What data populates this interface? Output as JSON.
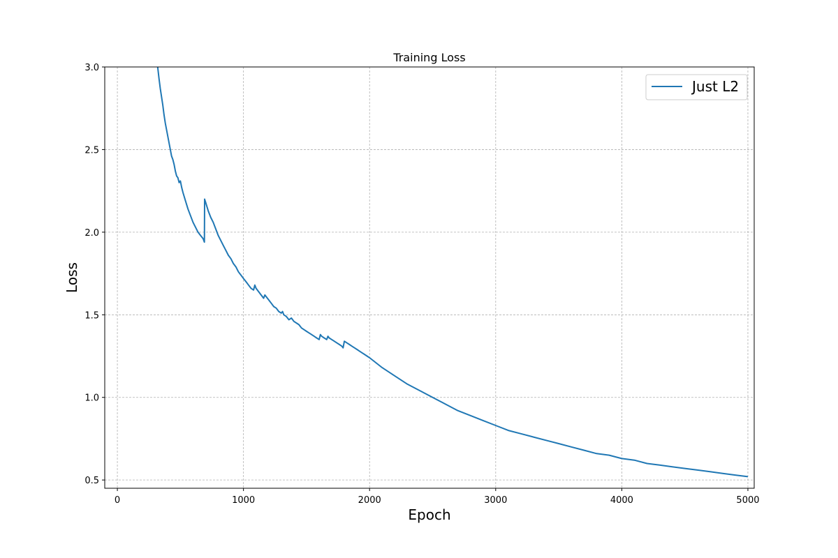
{
  "chart_data": {
    "type": "line",
    "title": "Training Loss",
    "xlabel": "Epoch",
    "ylabel": "Loss",
    "xlim": [
      -100,
      5050
    ],
    "ylim": [
      0.45,
      3.0
    ],
    "xticks": [
      0,
      1000,
      2000,
      3000,
      4000,
      5000
    ],
    "yticks": [
      0.5,
      1.0,
      1.5,
      2.0,
      2.5,
      3.0
    ],
    "xtick_labels": [
      "0",
      "1000",
      "2000",
      "3000",
      "4000",
      "5000"
    ],
    "ytick_labels": [
      "0.5",
      "1.0",
      "1.5",
      "2.0",
      "2.5",
      "3.0"
    ],
    "grid": true,
    "legend_position": "top-right",
    "series": [
      {
        "name": "Just L2",
        "color": "#1f77b4",
        "x": [
          320,
          330,
          340,
          350,
          360,
          370,
          380,
          390,
          400,
          410,
          420,
          430,
          440,
          450,
          460,
          470,
          480,
          490,
          500,
          510,
          520,
          540,
          560,
          580,
          600,
          620,
          640,
          660,
          680,
          690,
          692,
          700,
          720,
          740,
          760,
          780,
          800,
          820,
          840,
          860,
          880,
          900,
          920,
          940,
          960,
          980,
          1000,
          1020,
          1040,
          1060,
          1080,
          1090,
          1100,
          1120,
          1140,
          1160,
          1170,
          1180,
          1200,
          1220,
          1240,
          1260,
          1280,
          1300,
          1310,
          1320,
          1340,
          1360,
          1380,
          1400,
          1420,
          1440,
          1460,
          1480,
          1500,
          1520,
          1540,
          1560,
          1580,
          1600,
          1610,
          1620,
          1640,
          1660,
          1670,
          1680,
          1700,
          1720,
          1740,
          1760,
          1780,
          1790,
          1800,
          1820,
          1840,
          1860,
          1880,
          1900,
          1920,
          1940,
          1960,
          1980,
          2000,
          2100,
          2200,
          2300,
          2400,
          2500,
          2600,
          2700,
          2800,
          2900,
          3000,
          3100,
          3200,
          3300,
          3400,
          3500,
          3600,
          3700,
          3800,
          3900,
          4000,
          4100,
          4200,
          4300,
          4400,
          4500,
          4600,
          4700,
          4800,
          4900,
          5000
        ],
        "y": [
          3.0,
          2.93,
          2.87,
          2.82,
          2.77,
          2.71,
          2.66,
          2.62,
          2.58,
          2.54,
          2.5,
          2.46,
          2.44,
          2.41,
          2.37,
          2.34,
          2.33,
          2.3,
          2.31,
          2.27,
          2.24,
          2.19,
          2.14,
          2.1,
          2.06,
          2.03,
          2.0,
          1.98,
          1.96,
          1.94,
          2.2,
          2.18,
          2.13,
          2.09,
          2.06,
          2.02,
          1.98,
          1.95,
          1.92,
          1.89,
          1.86,
          1.84,
          1.81,
          1.79,
          1.76,
          1.74,
          1.72,
          1.7,
          1.68,
          1.66,
          1.65,
          1.68,
          1.66,
          1.64,
          1.62,
          1.6,
          1.62,
          1.61,
          1.59,
          1.57,
          1.55,
          1.54,
          1.52,
          1.51,
          1.52,
          1.5,
          1.49,
          1.47,
          1.48,
          1.46,
          1.45,
          1.44,
          1.42,
          1.41,
          1.4,
          1.39,
          1.38,
          1.37,
          1.36,
          1.35,
          1.38,
          1.37,
          1.36,
          1.35,
          1.37,
          1.36,
          1.35,
          1.34,
          1.33,
          1.32,
          1.31,
          1.3,
          1.34,
          1.33,
          1.32,
          1.31,
          1.3,
          1.29,
          1.28,
          1.27,
          1.26,
          1.25,
          1.24,
          1.18,
          1.13,
          1.08,
          1.04,
          1.0,
          0.96,
          0.92,
          0.89,
          0.86,
          0.83,
          0.8,
          0.78,
          0.76,
          0.74,
          0.72,
          0.7,
          0.68,
          0.66,
          0.65,
          0.63,
          0.62,
          0.6,
          0.59,
          0.58,
          0.57,
          0.56,
          0.55,
          0.54,
          0.53,
          0.52
        ]
      }
    ]
  }
}
